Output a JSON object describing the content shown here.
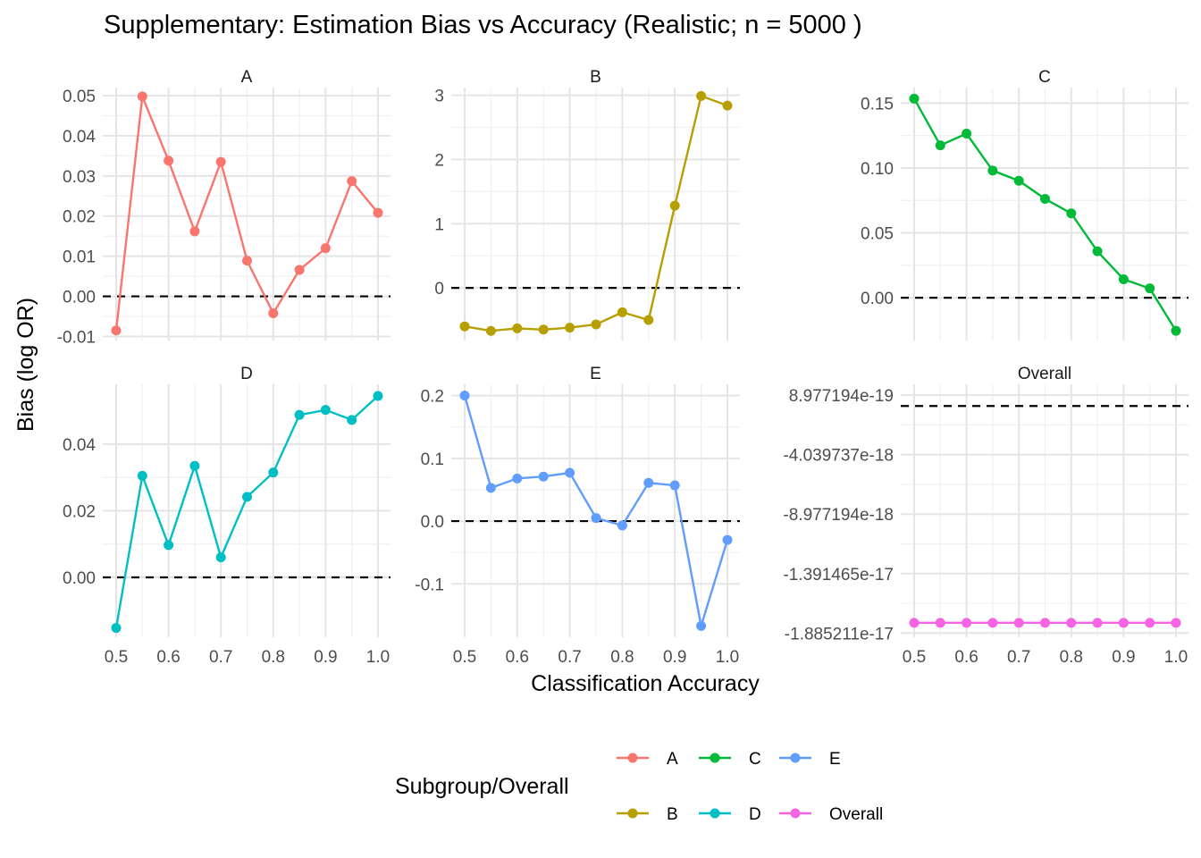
{
  "title": "Supplementary: Estimation Bias vs Accuracy (Realistic; n = 5000 )",
  "xlabel": "Classification Accuracy",
  "ylabel": "Bias (log OR)",
  "legend": {
    "title": "Subgroup/Overall",
    "placement": "bottom",
    "items": [
      {
        "label": "A",
        "color": "#F8766D"
      },
      {
        "label": "B",
        "color": "#B79F00"
      },
      {
        "label": "C",
        "color": "#00BA38"
      },
      {
        "label": "D",
        "color": "#00BFC4"
      },
      {
        "label": "E",
        "color": "#619CFF"
      },
      {
        "label": "Overall",
        "color": "#F564E3"
      }
    ]
  },
  "chart_data": {
    "type": "line",
    "facets": true,
    "reference_line": 0,
    "x": [
      0.5,
      0.55,
      0.6,
      0.65,
      0.7,
      0.75,
      0.8,
      0.85,
      0.9,
      0.95,
      1.0
    ],
    "x_ticks": [
      "0.5",
      "0.6",
      "0.7",
      "0.8",
      "0.9",
      "1.0"
    ],
    "xlim": [
      0.5,
      1.0
    ],
    "grid": true,
    "panels": [
      {
        "name": "A",
        "color": "#F8766D",
        "values": [
          -0.0085,
          0.0498,
          0.0338,
          0.0162,
          0.0335,
          0.0089,
          -0.0042,
          0.0066,
          0.012,
          0.0287,
          0.0208
        ],
        "ylim": [
          -0.011,
          0.052
        ],
        "y_ticks": [
          -0.01,
          0.0,
          0.01,
          0.02,
          0.03,
          0.04,
          0.05
        ],
        "y_tick_labels": [
          "-0.01",
          "0.00",
          "0.01",
          "0.02",
          "0.03",
          "0.04",
          "0.05"
        ]
      },
      {
        "name": "B",
        "color": "#B79F00",
        "values": [
          -0.6,
          -0.67,
          -0.63,
          -0.65,
          -0.62,
          -0.57,
          -0.38,
          -0.5,
          1.28,
          2.99,
          2.84
        ],
        "ylim": [
          -0.82,
          3.12
        ],
        "y_ticks": [
          0,
          1,
          2,
          3
        ],
        "y_tick_labels": [
          "0",
          "1",
          "2",
          "3"
        ]
      },
      {
        "name": "C",
        "color": "#00BA38",
        "values": [
          0.1535,
          0.1175,
          0.1265,
          0.098,
          0.0902,
          0.0762,
          0.065,
          0.0358,
          0.0142,
          0.0072,
          -0.0255
        ],
        "ylim": [
          -0.033,
          0.162
        ],
        "y_ticks": [
          0.0,
          0.05,
          0.1,
          0.15
        ],
        "y_tick_labels": [
          "0.00",
          "0.05",
          "0.10",
          "0.15"
        ]
      },
      {
        "name": "D",
        "color": "#00BFC4",
        "values": [
          -0.0152,
          0.0305,
          0.0097,
          0.0335,
          0.006,
          0.0242,
          0.0315,
          0.0488,
          0.0503,
          0.0473,
          0.0545
        ],
        "ylim": [
          -0.018,
          0.058
        ],
        "y_ticks": [
          0.0,
          0.02,
          0.04
        ],
        "y_tick_labels": [
          "0.00",
          "0.02",
          "0.04"
        ]
      },
      {
        "name": "E",
        "color": "#619CFF",
        "values": [
          0.2,
          0.053,
          0.068,
          0.071,
          0.077,
          0.005,
          -0.007,
          0.061,
          0.057,
          -0.167,
          -0.03
        ],
        "ylim": [
          -0.185,
          0.218
        ],
        "y_ticks": [
          -0.1,
          0.0,
          0.1,
          0.2
        ],
        "y_tick_labels": [
          "-0.1",
          "0.0",
          "0.1",
          "0.2"
        ]
      },
      {
        "name": "Overall",
        "color": "#F564E3",
        "values": [
          -1.8e-17,
          -1.8e-17,
          -1.8e-17,
          -1.8e-17,
          -1.8e-17,
          -1.8e-17,
          -1.8e-17,
          -1.8e-17,
          -1.8e-17,
          -1.8e-17,
          -1.8e-17
        ],
        "ylim": [
          -1.92e-17,
          1.8e-18
        ],
        "y_ticks": [
          8.977194e-19,
          -4.039737e-18,
          -8.977194e-18,
          -1.391465e-17,
          -1.885211e-17
        ],
        "y_tick_labels": [
          "8.977194e-19",
          "-4.039737e-18",
          "-8.977194e-18",
          "-1.391465e-17",
          "-1.885211e-17"
        ]
      }
    ]
  }
}
